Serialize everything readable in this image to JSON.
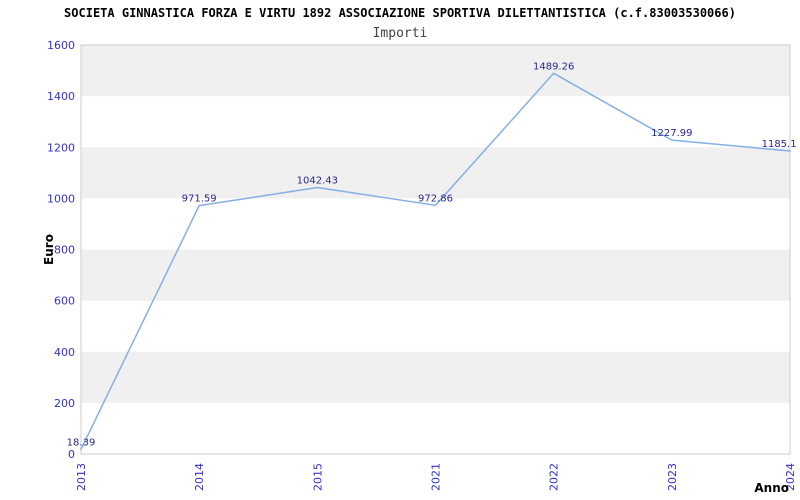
{
  "header": {
    "title": "SOCIETA GINNASTICA FORZA E VIRTU 1892 ASSOCIAZIONE SPORTIVA DILETTANTISTICA (c.f.83003530066)",
    "subtitle": "Importi"
  },
  "chart_data": {
    "type": "line",
    "title": "SOCIETA GINNASTICA FORZA E VIRTU 1892 ASSOCIAZIONE SPORTIVA DILETTANTISTICA (c.f.83003530066)",
    "subtitle": "Importi",
    "categories": [
      "2013",
      "2014",
      "2015",
      "2021",
      "2022",
      "2023",
      "2024"
    ],
    "series": [
      {
        "name": "Importi",
        "values": [
          18.39,
          971.59,
          1042.43,
          972.86,
          1489.26,
          1227.99,
          1185.1
        ]
      }
    ],
    "point_labels": [
      "18.39",
      "971.59",
      "1042.43",
      "972.86",
      "1489.26",
      "1227.99",
      "1185.1"
    ],
    "xlabel": "Anno",
    "ylabel": "Euro",
    "ylim": [
      0,
      1600
    ],
    "yticks": [
      0,
      200,
      400,
      600,
      800,
      1000,
      1200,
      1400,
      1600
    ],
    "grid": "alternating-horizontal-bands",
    "legend": "none",
    "colors": {
      "line": "#85b0e5",
      "band": "#f0f0f0",
      "plot_border": "#cccccc",
      "tick_label": "#3333cc",
      "point_label": "#28288c",
      "axis_title": "#000000",
      "title": "#000000",
      "subtitle": "#444444",
      "background": "#ffffff"
    }
  }
}
